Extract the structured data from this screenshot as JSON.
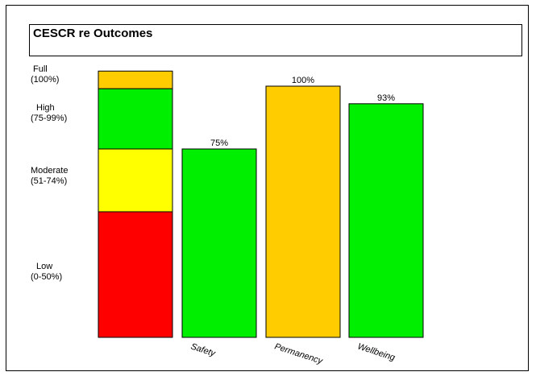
{
  "colors": {
    "low": "#ff0000",
    "moderate": "#ffff00",
    "high": "#00ee00",
    "full": "#ffcc00"
  },
  "chart_data": {
    "type": "bar",
    "title": "CESCR re Outcomes",
    "ylim": [
      0,
      100
    ],
    "grid": false,
    "legend": "none",
    "bands": [
      {
        "name": "Low",
        "range": "(0-50%)",
        "from": 0,
        "to": 50,
        "color": "#ff0000"
      },
      {
        "name": "Moderate",
        "range": "(51-74%)",
        "from": 50,
        "to": 75,
        "color": "#ffff00"
      },
      {
        "name": "High",
        "range": "(75-99%)",
        "from": 75,
        "to": 99,
        "color": "#00ee00"
      },
      {
        "name": "Full",
        "range": "(100%)",
        "from": 99,
        "to": 106,
        "color": "#ffcc00"
      }
    ],
    "categories": [
      "Safety",
      "Permanency",
      "Wellbeing"
    ],
    "values": [
      75,
      100,
      93
    ],
    "value_labels": [
      "75%",
      "100%",
      "93%"
    ],
    "bar_colors": [
      "#00ee00",
      "#ffcc00",
      "#00ee00"
    ]
  }
}
